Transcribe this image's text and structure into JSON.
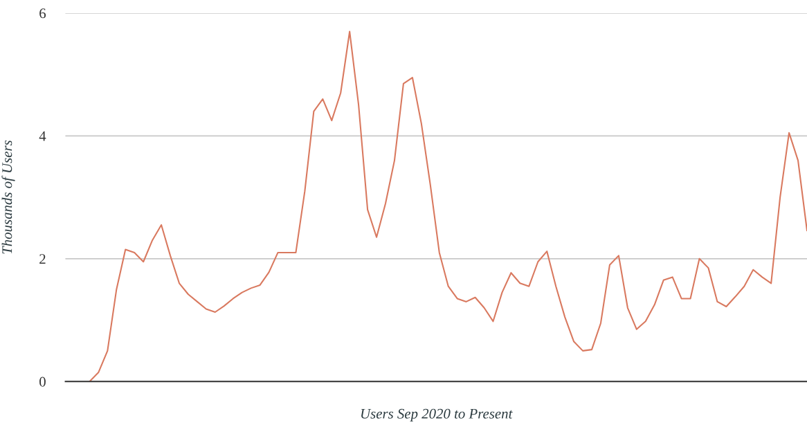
{
  "chart_data": {
    "type": "line",
    "xlabel": "Users Sep 2020 to Present",
    "ylabel": "Thousands of Users",
    "categories": [
      null,
      null,
      null,
      null,
      null,
      null,
      null,
      null,
      null,
      null,
      null,
      null,
      null,
      null,
      null,
      null,
      null,
      null,
      null,
      null,
      null,
      null,
      null,
      null,
      null,
      null,
      null,
      null,
      null,
      null,
      null,
      null,
      null,
      null,
      null,
      null,
      null,
      null,
      null,
      null,
      null,
      null,
      null,
      null,
      null,
      null,
      null,
      null,
      null,
      null,
      null,
      null,
      null,
      null,
      null,
      null,
      null,
      null,
      null,
      null,
      null,
      null,
      null,
      null,
      null,
      null,
      null,
      null,
      null,
      null,
      null,
      null,
      null,
      null,
      null,
      null,
      null,
      null,
      null,
      null,
      null
    ],
    "series": [
      {
        "color": "#d9795f",
        "values": [
          0,
          0.15,
          0.5,
          1.5,
          2.15,
          2.1,
          1.95,
          2.3,
          2.55,
          2.05,
          1.6,
          1.42,
          1.3,
          1.18,
          1.13,
          1.23,
          1.35,
          1.45,
          1.52,
          1.57,
          1.78,
          2.1,
          2.1,
          2.1,
          3.1,
          4.4,
          4.6,
          4.25,
          4.7,
          5.7,
          4.5,
          2.8,
          2.35,
          2.9,
          3.6,
          4.85,
          4.95,
          4.2,
          3.2,
          2.1,
          1.55,
          1.35,
          1.3,
          1.37,
          1.2,
          0.98,
          1.45,
          1.77,
          1.6,
          1.55,
          1.95,
          2.12,
          1.55,
          1.05,
          0.65,
          0.5,
          0.52,
          0.95,
          1.9,
          2.05,
          1.2,
          0.85,
          0.98,
          1.25,
          1.65,
          1.7,
          1.35,
          1.35,
          2.0,
          1.85,
          1.3,
          1.22,
          1.38,
          1.55,
          1.82,
          1.7,
          1.6,
          3.0,
          4.05,
          3.6,
          2.46
        ]
      }
    ],
    "ylim": [
      0,
      6
    ],
    "yticks": [
      0,
      2,
      4,
      6
    ],
    "grid": "y",
    "tick_labels": "y",
    "marker": "none",
    "line_style": "solid"
  }
}
